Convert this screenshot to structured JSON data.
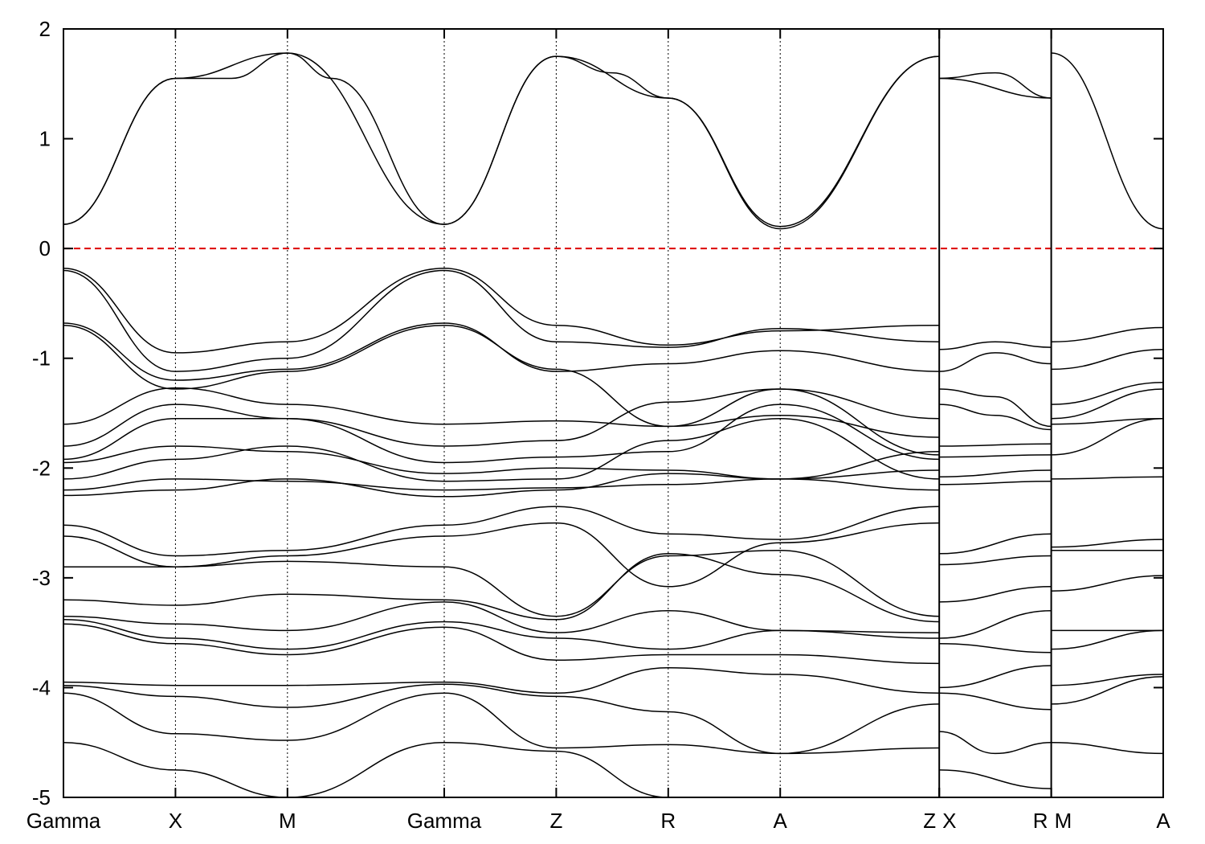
{
  "chart_data": {
    "type": "line",
    "title": "",
    "xlabel": "",
    "ylabel": "",
    "ylim": [
      -5,
      2
    ],
    "yticks": [
      {
        "value": 2,
        "label": "2"
      },
      {
        "value": 1,
        "label": "1"
      },
      {
        "value": 0,
        "label": "0"
      },
      {
        "value": -1,
        "label": "-1"
      },
      {
        "value": -2,
        "label": "-2"
      },
      {
        "value": -3,
        "label": "-3"
      },
      {
        "value": -4,
        "label": "-4"
      },
      {
        "value": -5,
        "label": "-5"
      }
    ],
    "kpath_labels": [
      "Gamma",
      "X",
      "M",
      "Gamma",
      "Z",
      "R",
      "A",
      "Z",
      "X",
      "R",
      "M",
      "A"
    ],
    "kpath_positions": [
      0,
      1,
      2,
      3.4,
      4.4,
      5.4,
      6.4,
      7.82,
      7.82,
      8.82,
      8.82,
      9.82
    ],
    "path_breaks": [
      7.82,
      8.82
    ],
    "fermi_level": {
      "value": 0,
      "color": "#dd0000",
      "style": "dashed"
    },
    "grid_vertical": true,
    "band_color": "#000000",
    "series": [
      {
        "values": [
          [
            0,
            0.22
          ],
          [
            1,
            1.55
          ],
          [
            2,
            1.78
          ],
          [
            3.4,
            0.22
          ],
          [
            4.4,
            1.75
          ],
          [
            5.4,
            1.37
          ],
          [
            6.4,
            0.18
          ],
          [
            7.82,
            1.75
          ]
        ]
      },
      {
        "values": [
          [
            0,
            0.22
          ],
          [
            1,
            1.55
          ],
          [
            1.5,
            1.55
          ],
          [
            2,
            1.78
          ],
          [
            2.4,
            1.55
          ],
          [
            3.4,
            0.22
          ],
          [
            4.4,
            1.75
          ],
          [
            4.9,
            1.6
          ],
          [
            5.4,
            1.37
          ],
          [
            6.4,
            0.2
          ],
          [
            7.82,
            1.75
          ]
        ]
      },
      {
        "values": [
          [
            7.82,
            1.55
          ],
          [
            8.32,
            1.6
          ],
          [
            8.82,
            1.37
          ]
        ]
      },
      {
        "values": [
          [
            7.82,
            1.55
          ],
          [
            8.82,
            1.37
          ]
        ]
      },
      {
        "values": [
          [
            8.82,
            1.78
          ],
          [
            9.82,
            0.18
          ]
        ]
      },
      {
        "values": [
          [
            0,
            -0.18
          ],
          [
            1,
            -0.95
          ],
          [
            2,
            -0.85
          ],
          [
            3.4,
            -0.18
          ],
          [
            4.4,
            -0.7
          ],
          [
            5.4,
            -0.88
          ],
          [
            6.4,
            -0.75
          ],
          [
            7.82,
            -0.7
          ]
        ]
      },
      {
        "values": [
          [
            0,
            -0.2
          ],
          [
            1,
            -1.12
          ],
          [
            2,
            -1.0
          ],
          [
            3.4,
            -0.2
          ],
          [
            4.4,
            -0.85
          ],
          [
            5.4,
            -0.9
          ],
          [
            6.4,
            -0.73
          ],
          [
            7.82,
            -0.85
          ]
        ]
      },
      {
        "values": [
          [
            0,
            -0.68
          ],
          [
            1,
            -1.2
          ],
          [
            2,
            -1.1
          ],
          [
            3.4,
            -0.68
          ],
          [
            4.4,
            -1.12
          ],
          [
            5.4,
            -1.05
          ],
          [
            6.4,
            -0.93
          ],
          [
            7.82,
            -1.12
          ]
        ]
      },
      {
        "values": [
          [
            0,
            -0.7
          ],
          [
            1,
            -1.28
          ],
          [
            2,
            -1.12
          ],
          [
            3.4,
            -0.7
          ],
          [
            4.4,
            -1.1
          ],
          [
            5.4,
            -1.62
          ],
          [
            6.4,
            -1.28
          ],
          [
            7.82,
            -1.55
          ]
        ]
      },
      {
        "values": [
          [
            0,
            -1.6
          ],
          [
            1,
            -1.27
          ],
          [
            2,
            -1.42
          ],
          [
            3.4,
            -1.6
          ],
          [
            4.4,
            -1.57
          ],
          [
            5.4,
            -1.62
          ],
          [
            6.4,
            -1.52
          ],
          [
            7.82,
            -1.72
          ]
        ]
      },
      {
        "values": [
          [
            0,
            -1.8
          ],
          [
            1,
            -1.42
          ],
          [
            2,
            -1.55
          ],
          [
            3.4,
            -1.8
          ],
          [
            4.4,
            -1.75
          ],
          [
            5.4,
            -1.4
          ],
          [
            6.4,
            -1.28
          ],
          [
            7.82,
            -1.88
          ]
        ]
      },
      {
        "values": [
          [
            0,
            -1.92
          ],
          [
            1,
            -1.55
          ],
          [
            2,
            -1.55
          ],
          [
            3.4,
            -1.95
          ],
          [
            4.4,
            -1.9
          ],
          [
            5.4,
            -1.85
          ],
          [
            6.4,
            -1.42
          ],
          [
            7.82,
            -1.92
          ]
        ]
      },
      {
        "values": [
          [
            0,
            -1.95
          ],
          [
            1,
            -1.8
          ],
          [
            2,
            -1.85
          ],
          [
            3.4,
            -2.05
          ],
          [
            4.4,
            -2.0
          ],
          [
            5.4,
            -2.02
          ],
          [
            6.4,
            -2.1
          ],
          [
            7.82,
            -2.02
          ]
        ]
      },
      {
        "values": [
          [
            0,
            -2.1
          ],
          [
            1,
            -1.92
          ],
          [
            2,
            -1.8
          ],
          [
            3.4,
            -2.12
          ],
          [
            4.4,
            -2.1
          ],
          [
            5.4,
            -1.75
          ],
          [
            6.4,
            -1.55
          ],
          [
            7.82,
            -2.1
          ]
        ]
      },
      {
        "values": [
          [
            0,
            -2.2
          ],
          [
            1,
            -2.1
          ],
          [
            2,
            -2.12
          ],
          [
            3.4,
            -2.2
          ],
          [
            4.4,
            -2.18
          ],
          [
            5.4,
            -2.15
          ],
          [
            6.4,
            -2.1
          ],
          [
            7.82,
            -2.2
          ]
        ]
      },
      {
        "values": [
          [
            0,
            -2.25
          ],
          [
            1,
            -2.2
          ],
          [
            2,
            -2.1
          ],
          [
            3.4,
            -2.26
          ],
          [
            4.4,
            -2.2
          ],
          [
            5.4,
            -2.05
          ],
          [
            6.4,
            -2.1
          ],
          [
            7.82,
            -1.85
          ]
        ]
      },
      {
        "values": [
          [
            0,
            -2.52
          ],
          [
            1,
            -2.8
          ],
          [
            2,
            -2.75
          ],
          [
            3.4,
            -2.52
          ],
          [
            4.4,
            -2.35
          ],
          [
            5.4,
            -2.6
          ],
          [
            6.4,
            -2.65
          ],
          [
            7.82,
            -2.35
          ]
        ]
      },
      {
        "values": [
          [
            0,
            -2.62
          ],
          [
            1,
            -2.9
          ],
          [
            2,
            -2.8
          ],
          [
            3.4,
            -2.62
          ],
          [
            4.4,
            -2.5
          ],
          [
            5.4,
            -3.08
          ],
          [
            6.4,
            -2.68
          ],
          [
            7.82,
            -2.5
          ]
        ]
      },
      {
        "values": [
          [
            0,
            -2.9
          ],
          [
            1,
            -2.9
          ],
          [
            2,
            -2.85
          ],
          [
            3.4,
            -2.9
          ],
          [
            4.4,
            -3.35
          ],
          [
            5.4,
            -2.8
          ],
          [
            6.4,
            -2.75
          ],
          [
            7.82,
            -3.35
          ]
        ]
      },
      {
        "values": [
          [
            0,
            -3.2
          ],
          [
            1,
            -3.25
          ],
          [
            2,
            -3.15
          ],
          [
            3.4,
            -3.2
          ],
          [
            4.4,
            -3.38
          ],
          [
            5.4,
            -2.78
          ],
          [
            6.4,
            -2.97
          ],
          [
            7.82,
            -3.4
          ]
        ]
      },
      {
        "values": [
          [
            0,
            -3.35
          ],
          [
            1,
            -3.42
          ],
          [
            2,
            -3.48
          ],
          [
            3.4,
            -3.22
          ],
          [
            4.4,
            -3.5
          ],
          [
            5.4,
            -3.3
          ],
          [
            6.4,
            -3.48
          ],
          [
            7.82,
            -3.5
          ]
        ]
      },
      {
        "values": [
          [
            0,
            -3.38
          ],
          [
            1,
            -3.55
          ],
          [
            2,
            -3.65
          ],
          [
            3.4,
            -3.4
          ],
          [
            4.4,
            -3.55
          ],
          [
            5.4,
            -3.65
          ],
          [
            6.4,
            -3.48
          ],
          [
            7.82,
            -3.55
          ]
        ]
      },
      {
        "values": [
          [
            0,
            -3.42
          ],
          [
            1,
            -3.6
          ],
          [
            2,
            -3.7
          ],
          [
            3.4,
            -3.45
          ],
          [
            4.4,
            -3.75
          ],
          [
            5.4,
            -3.7
          ],
          [
            6.4,
            -3.7
          ],
          [
            7.82,
            -3.78
          ]
        ]
      },
      {
        "values": [
          [
            0,
            -3.95
          ],
          [
            1,
            -3.98
          ],
          [
            2,
            -3.98
          ],
          [
            3.4,
            -3.95
          ],
          [
            4.4,
            -4.05
          ],
          [
            5.4,
            -3.82
          ],
          [
            6.4,
            -3.88
          ],
          [
            7.82,
            -4.05
          ]
        ]
      },
      {
        "values": [
          [
            0,
            -3.98
          ],
          [
            1,
            -4.08
          ],
          [
            2,
            -4.18
          ],
          [
            3.4,
            -3.97
          ],
          [
            4.4,
            -4.08
          ],
          [
            5.4,
            -4.22
          ],
          [
            6.4,
            -4.6
          ],
          [
            7.82,
            -4.15
          ]
        ]
      },
      {
        "values": [
          [
            0,
            -4.05
          ],
          [
            1,
            -4.42
          ],
          [
            2,
            -4.48
          ],
          [
            3.4,
            -4.05
          ],
          [
            4.4,
            -4.55
          ],
          [
            5.4,
            -4.52
          ],
          [
            6.4,
            -4.6
          ],
          [
            7.82,
            -4.55
          ]
        ]
      },
      {
        "values": [
          [
            0,
            -4.5
          ],
          [
            1,
            -4.75
          ],
          [
            2,
            -5.0
          ],
          [
            3.4,
            -4.5
          ],
          [
            4.4,
            -4.58
          ],
          [
            5.4,
            -5.0
          ]
        ]
      },
      {
        "values": [
          [
            7.82,
            -0.92
          ],
          [
            8.32,
            -0.85
          ],
          [
            8.82,
            -0.9
          ]
        ]
      },
      {
        "values": [
          [
            7.82,
            -1.12
          ],
          [
            8.32,
            -0.95
          ],
          [
            8.82,
            -1.05
          ]
        ]
      },
      {
        "values": [
          [
            7.82,
            -1.28
          ],
          [
            8.32,
            -1.35
          ],
          [
            8.82,
            -1.62
          ]
        ]
      },
      {
        "values": [
          [
            7.82,
            -1.42
          ],
          [
            8.32,
            -1.52
          ],
          [
            8.82,
            -1.65
          ]
        ]
      },
      {
        "values": [
          [
            7.82,
            -1.8
          ],
          [
            8.82,
            -1.78
          ]
        ]
      },
      {
        "values": [
          [
            7.82,
            -1.9
          ],
          [
            8.82,
            -1.88
          ]
        ]
      },
      {
        "values": [
          [
            7.82,
            -2.08
          ],
          [
            8.82,
            -2.02
          ]
        ]
      },
      {
        "values": [
          [
            7.82,
            -2.15
          ],
          [
            8.82,
            -2.12
          ]
        ]
      },
      {
        "values": [
          [
            7.82,
            -2.78
          ],
          [
            8.82,
            -2.6
          ]
        ]
      },
      {
        "values": [
          [
            7.82,
            -2.88
          ],
          [
            8.82,
            -2.8
          ]
        ]
      },
      {
        "values": [
          [
            7.82,
            -3.22
          ],
          [
            8.82,
            -3.08
          ]
        ]
      },
      {
        "values": [
          [
            7.82,
            -3.55
          ],
          [
            8.82,
            -3.3
          ]
        ]
      },
      {
        "values": [
          [
            7.82,
            -3.6
          ],
          [
            8.82,
            -3.68
          ]
        ]
      },
      {
        "values": [
          [
            7.82,
            -4.0
          ],
          [
            8.82,
            -3.8
          ]
        ]
      },
      {
        "values": [
          [
            7.82,
            -4.05
          ],
          [
            8.82,
            -4.2
          ]
        ]
      },
      {
        "values": [
          [
            7.82,
            -4.4
          ],
          [
            8.32,
            -4.6
          ],
          [
            8.82,
            -4.5
          ]
        ]
      },
      {
        "values": [
          [
            7.82,
            -4.75
          ],
          [
            8.82,
            -4.92
          ]
        ]
      },
      {
        "values": [
          [
            8.82,
            -0.85
          ],
          [
            9.82,
            -0.72
          ]
        ]
      },
      {
        "values": [
          [
            8.82,
            -1.1
          ],
          [
            9.82,
            -0.92
          ]
        ]
      },
      {
        "values": [
          [
            8.82,
            -1.42
          ],
          [
            9.82,
            -1.22
          ]
        ]
      },
      {
        "values": [
          [
            8.82,
            -1.55
          ],
          [
            9.82,
            -1.28
          ]
        ]
      },
      {
        "values": [
          [
            8.82,
            -1.6
          ],
          [
            9.82,
            -1.55
          ]
        ]
      },
      {
        "values": [
          [
            8.82,
            -1.88
          ],
          [
            9.82,
            -1.55
          ]
        ]
      },
      {
        "values": [
          [
            8.82,
            -2.1
          ],
          [
            9.82,
            -2.08
          ]
        ]
      },
      {
        "values": [
          [
            8.82,
            -2.72
          ],
          [
            9.82,
            -2.65
          ]
        ]
      },
      {
        "values": [
          [
            8.82,
            -2.75
          ],
          [
            9.82,
            -2.75
          ]
        ]
      },
      {
        "values": [
          [
            8.82,
            -3.12
          ],
          [
            9.82,
            -2.98
          ]
        ]
      },
      {
        "values": [
          [
            8.82,
            -3.48
          ],
          [
            9.82,
            -3.48
          ]
        ]
      },
      {
        "values": [
          [
            8.82,
            -3.65
          ],
          [
            9.82,
            -3.48
          ]
        ]
      },
      {
        "values": [
          [
            8.82,
            -3.98
          ],
          [
            9.82,
            -3.88
          ]
        ]
      },
      {
        "values": [
          [
            8.82,
            -4.15
          ],
          [
            9.82,
            -3.9
          ]
        ]
      },
      {
        "values": [
          [
            8.82,
            -4.5
          ],
          [
            9.82,
            -4.6
          ]
        ]
      }
    ]
  }
}
